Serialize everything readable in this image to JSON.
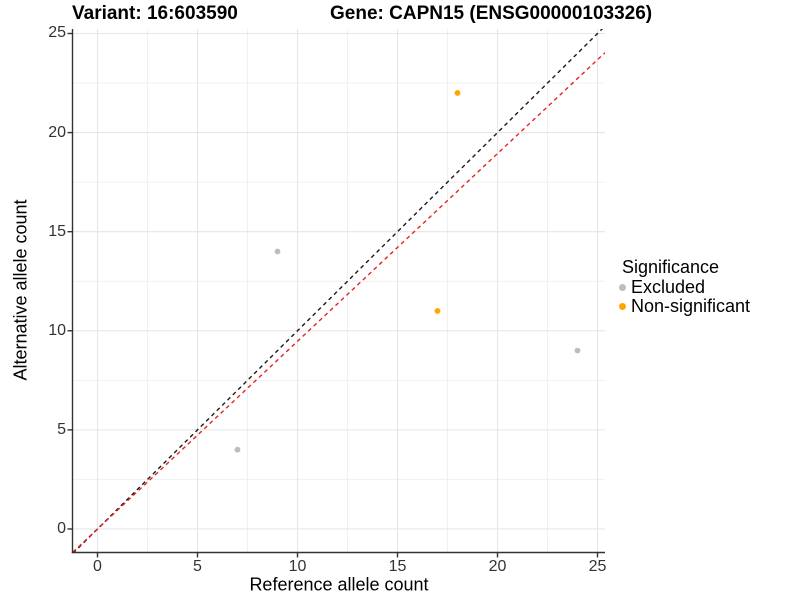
{
  "chart_data": {
    "type": "scatter",
    "title_left": "Variant: 16:603590",
    "title_right": "Gene: CAPN15 (ENSG00000103326)",
    "xlabel": "Reference allele count",
    "ylabel": "Alternative allele count",
    "xlim": [
      -1.225,
      25.375
    ],
    "ylim": [
      -1.187,
      25.227
    ],
    "x_ticks": [
      0,
      5,
      10,
      15,
      20,
      25
    ],
    "y_ticks": [
      0,
      5,
      10,
      15,
      20,
      25
    ],
    "x_minor_ticks": [
      2.5,
      7.5,
      12.5,
      17.5,
      22.5
    ],
    "y_minor_ticks": [
      2.5,
      7.5,
      12.5,
      17.5,
      22.5
    ],
    "grid": true,
    "series": [
      {
        "name": "Excluded",
        "color": "#bdbdbd",
        "points": [
          {
            "x": 7,
            "y": 4
          },
          {
            "x": 9,
            "y": 14
          },
          {
            "x": 24,
            "y": 9
          }
        ]
      },
      {
        "name": "Non-significant",
        "color": "#ffa500",
        "points": [
          {
            "x": 17,
            "y": 11
          },
          {
            "x": 18,
            "y": 22
          }
        ]
      }
    ],
    "lines": [
      {
        "name": "identity-line",
        "slope": 1.0,
        "intercept": 0,
        "color": "#1a1a1a",
        "style": "dashed"
      },
      {
        "name": "ratio-fit-line",
        "slope": 0.947,
        "intercept": 0,
        "color": "#e62222",
        "style": "dashed"
      }
    ],
    "legend": {
      "title": "Significance",
      "position": "right",
      "items": [
        {
          "label": "Excluded",
          "color": "#bdbdbd"
        },
        {
          "label": "Non-significant",
          "color": "#ffa500"
        }
      ]
    }
  }
}
